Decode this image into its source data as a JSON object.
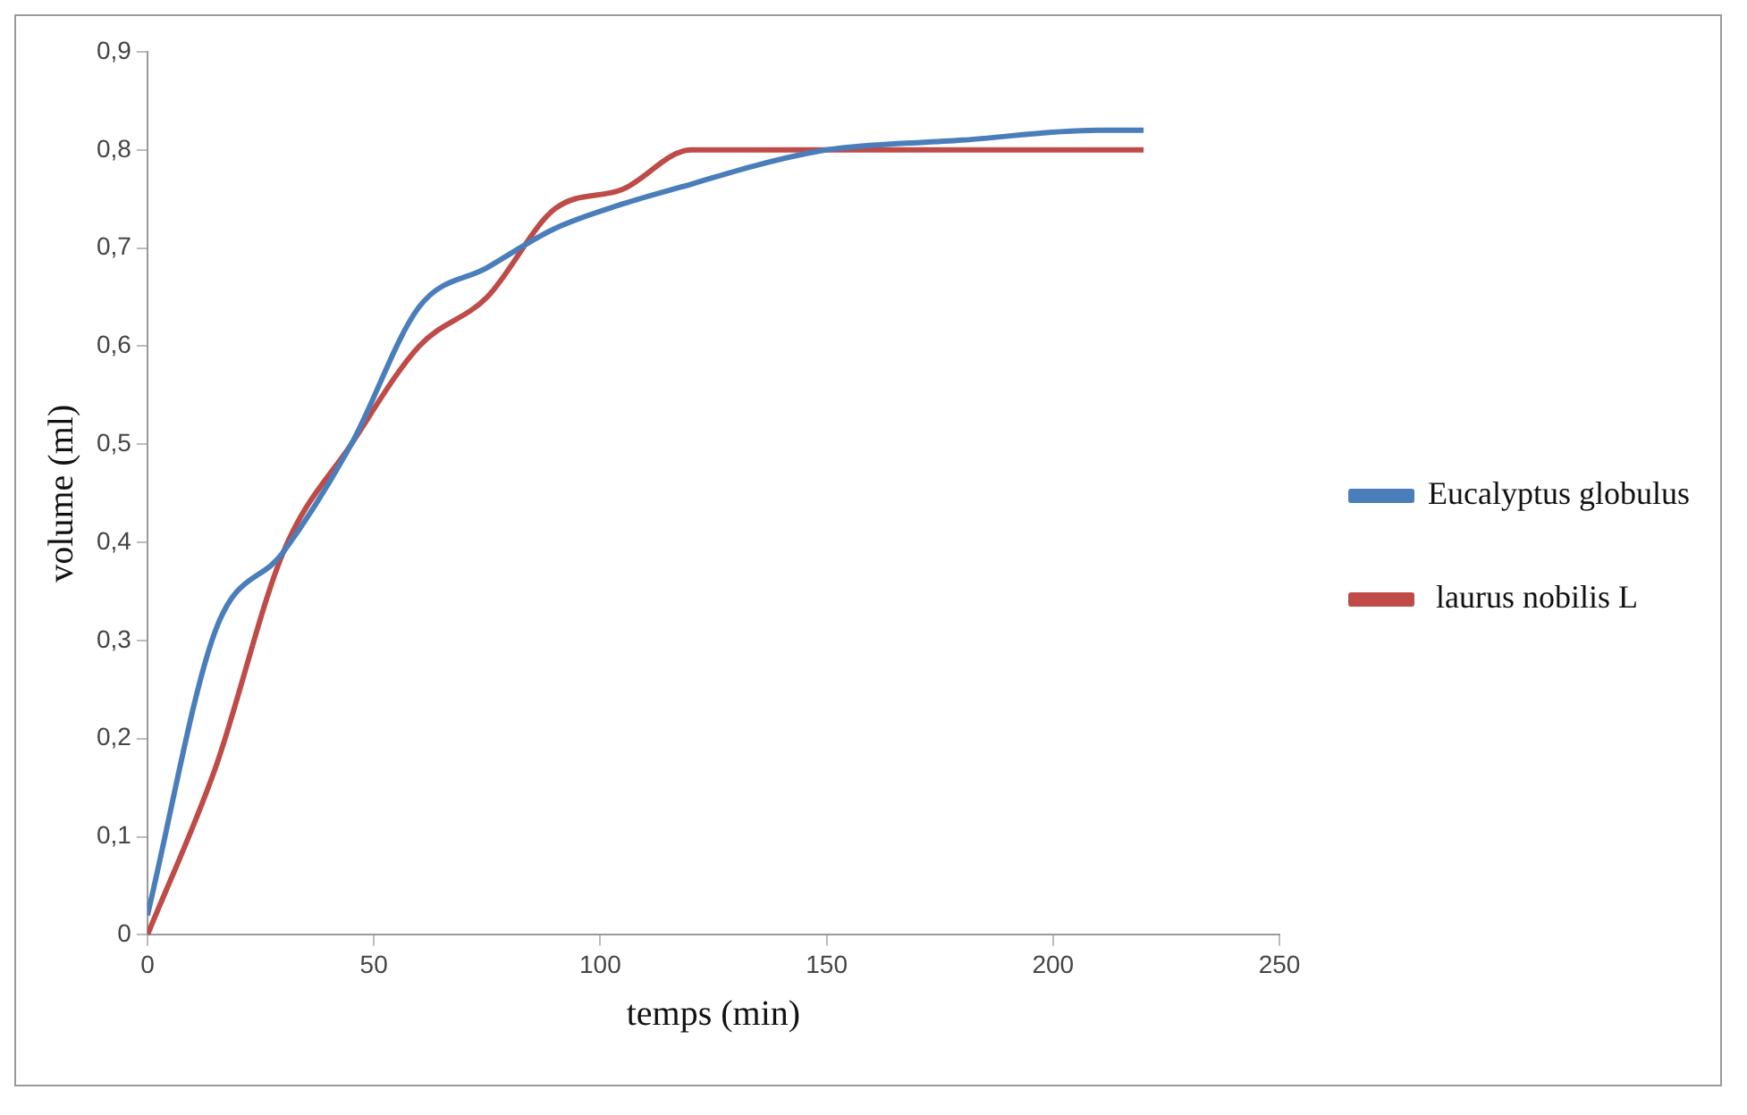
{
  "chart_data": {
    "type": "line",
    "xlabel": "temps (min)",
    "ylabel": "volume (ml)",
    "xlim": [
      0,
      250
    ],
    "xticks": [
      0,
      50,
      100,
      150,
      200,
      250
    ],
    "ylim": [
      0,
      0.9
    ],
    "yticks": [
      {
        "value": 0,
        "label": "0"
      },
      {
        "value": 0.1,
        "label": "0,1"
      },
      {
        "value": 0.2,
        "label": "0,2"
      },
      {
        "value": 0.3,
        "label": "0,3"
      },
      {
        "value": 0.4,
        "label": "0,4"
      },
      {
        "value": 0.5,
        "label": "0,5"
      },
      {
        "value": 0.6,
        "label": "0,6"
      },
      {
        "value": 0.7,
        "label": "0,7"
      },
      {
        "value": 0.8,
        "label": "0,8"
      },
      {
        "value": 0.9,
        "label": "0,9"
      }
    ],
    "grid": false,
    "legend": "right",
    "marker": "none",
    "line_style": "solid",
    "series": [
      {
        "name": "Eucalyptus globulus",
        "color": "#4a7ebb",
        "x": [
          0,
          15,
          30,
          45,
          60,
          75,
          90,
          105,
          120,
          135,
          150,
          180,
          210,
          220
        ],
        "values": [
          0.02,
          0.31,
          0.39,
          0.5,
          0.64,
          0.68,
          0.72,
          0.745,
          0.765,
          0.785,
          0.8,
          0.81,
          0.82,
          0.82
        ]
      },
      {
        "name": " laurus nobilis L",
        "color": "#be4b48",
        "x": [
          0,
          15,
          30,
          45,
          60,
          75,
          90,
          105,
          120,
          135,
          150,
          220
        ],
        "values": [
          0,
          0.17,
          0.39,
          0.5,
          0.6,
          0.65,
          0.74,
          0.76,
          0.8,
          0.8,
          0.8,
          0.8
        ]
      }
    ]
  }
}
